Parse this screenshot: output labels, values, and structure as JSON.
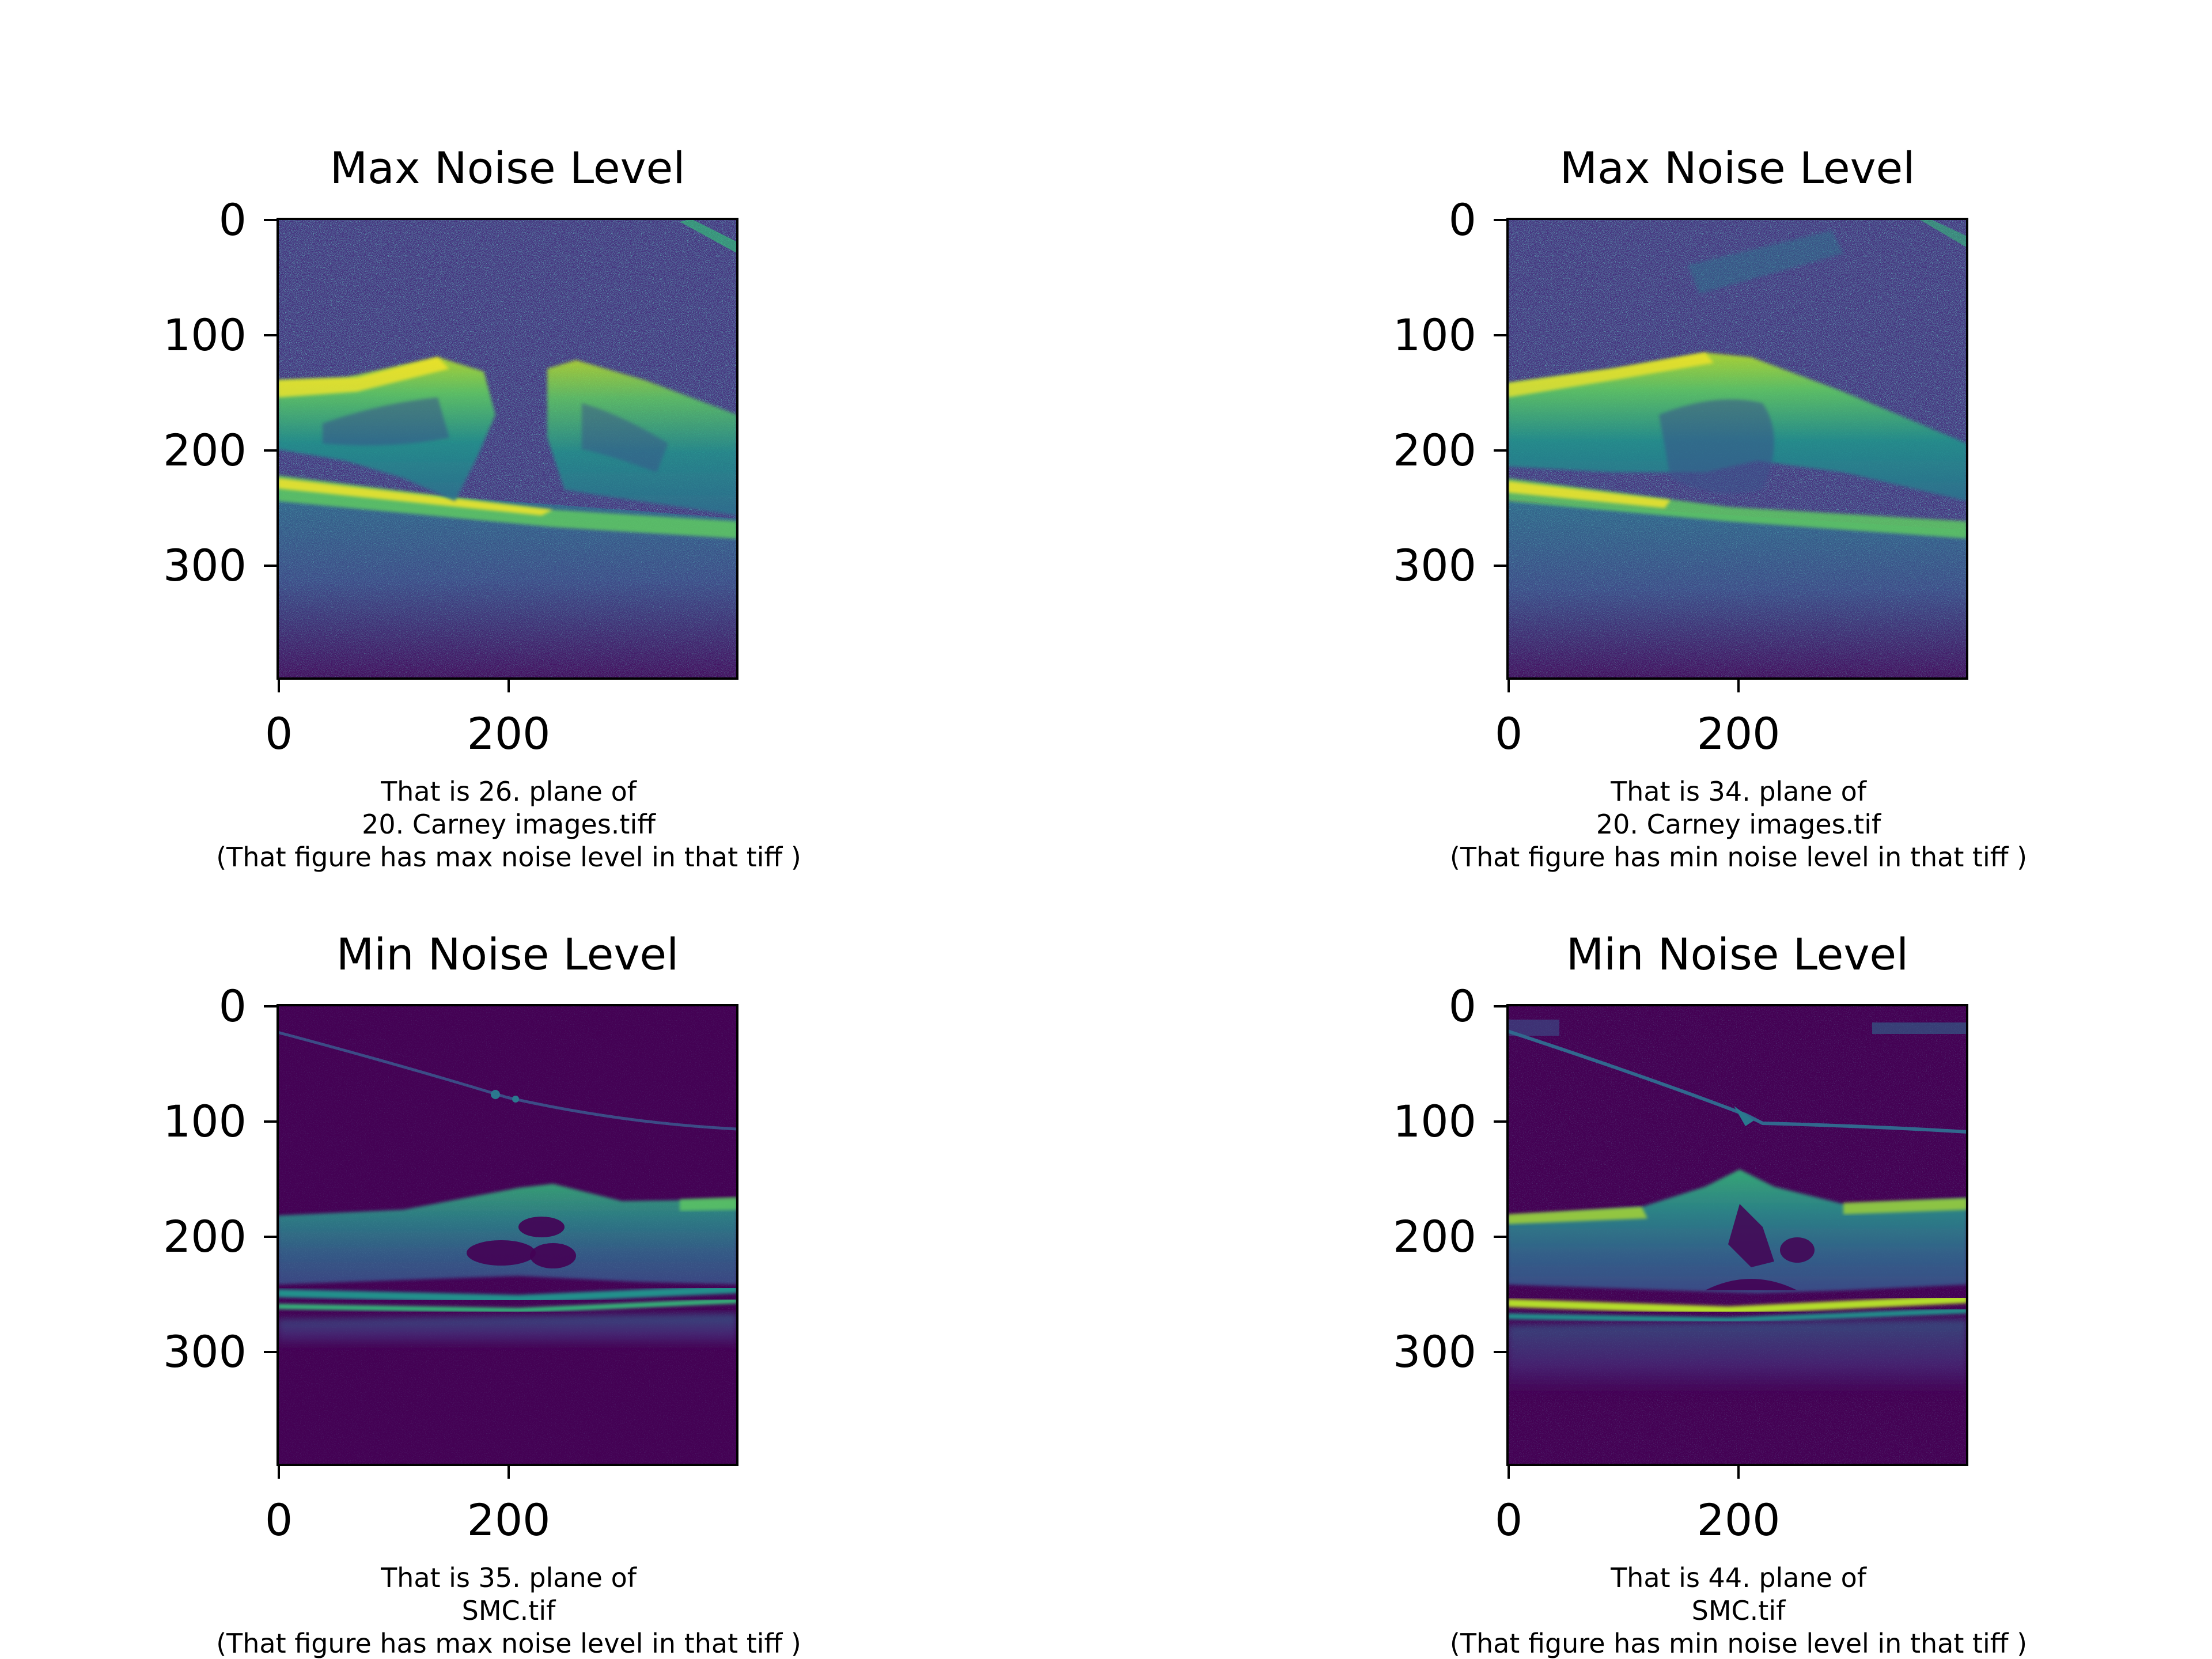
{
  "figure": {
    "panels": [
      {
        "title": "Max Noise Level",
        "caption": [
          "That is 26. plane of",
          "20. Carney images.tiff",
          "(That figure has max noise level in that tiff )"
        ],
        "x_ticks": [
          "0",
          "200"
        ],
        "y_ticks": [
          "0",
          "100",
          "200",
          "300"
        ],
        "image_description": "OCT retinal B-scan with high speckle noise; macular hole with separated retinal flaps; viridis colormap"
      },
      {
        "title": "Max Noise Level",
        "caption": [
          "That is 34. plane of",
          "20. Carney images.tif",
          "(That figure has min noise level in that tiff )"
        ],
        "x_ticks": [
          "0",
          "200"
        ],
        "y_ticks": [
          "0",
          "100",
          "200",
          "300"
        ],
        "image_description": "OCT retinal B-scan with high speckle noise; retina tented upward with cystic cavities; viridis colormap"
      },
      {
        "title": "Min Noise Level",
        "caption": [
          "That is 35. plane of",
          "SMC.tif",
          "(That figure has max noise level in that tiff )"
        ],
        "x_ticks": [
          "0",
          "200"
        ],
        "y_ticks": [
          "0",
          "100",
          "200",
          "300"
        ],
        "image_description": "OCT retinal B-scan with low noise; thin vitreous membrane and small cysts; viridis colormap"
      },
      {
        "title": "Min Noise Level",
        "caption": [
          "That is 44. plane of",
          "SMC.tif",
          "(That figure has min noise level in that tiff )"
        ],
        "x_ticks": [
          "0",
          "200"
        ],
        "y_ticks": [
          "0",
          "100",
          "200",
          "300"
        ],
        "image_description": "OCT retinal B-scan with low noise; vitreous traction line and foveal elevation with cysts; viridis colormap"
      }
    ],
    "colors": {
      "dark": "#440154",
      "mid": "#21918c",
      "bright": "#5ec962",
      "yellow": "#fde725"
    }
  }
}
